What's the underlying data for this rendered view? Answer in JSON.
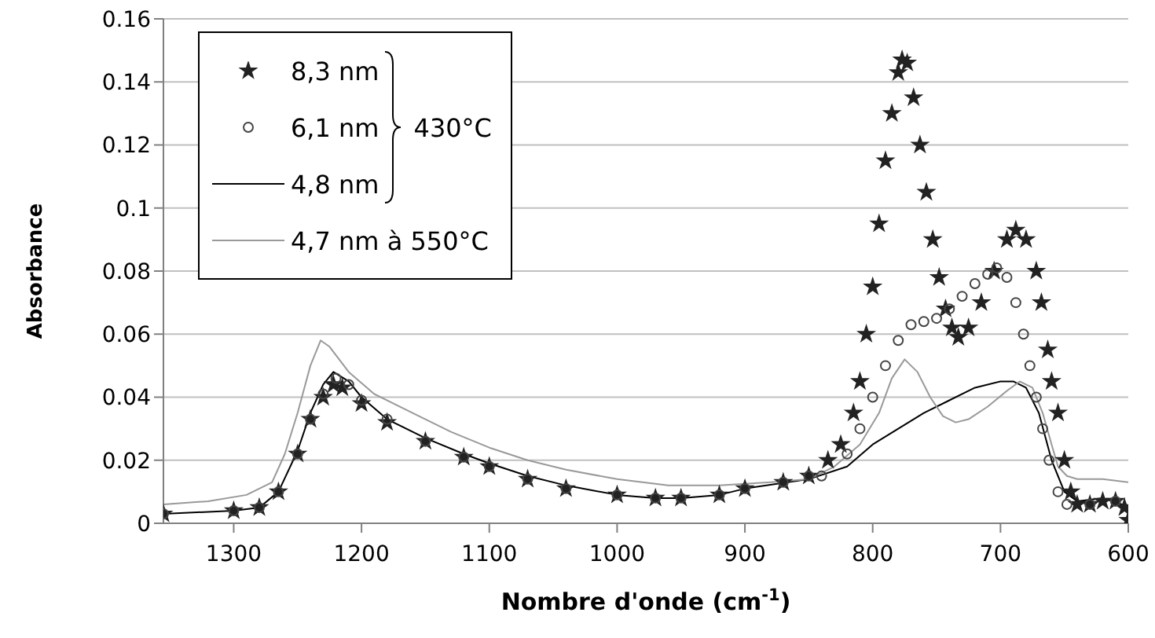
{
  "chart_data": {
    "type": "scatter",
    "xlabel": "Nombre d'onde (cm$^{-1}$)",
    "ylabel": "Absorbance",
    "xlim": [
      1355,
      600
    ],
    "xticks": [
      1300,
      1200,
      1100,
      1000,
      900,
      800,
      700,
      600
    ],
    "ylim": [
      0,
      0.16
    ],
    "yticks": [
      0,
      0.02,
      0.04,
      0.06,
      0.08,
      0.1,
      0.12,
      0.14,
      0.16
    ],
    "grid": "y",
    "legend": "top left",
    "annotations": [
      "430°C"
    ],
    "series": [
      {
        "name": "8,3 nm",
        "marker": "star",
        "color": "#222222",
        "x": [
          1355,
          1300,
          1280,
          1265,
          1250,
          1240,
          1230,
          1222,
          1215,
          1200,
          1180,
          1150,
          1120,
          1100,
          1070,
          1040,
          1000,
          970,
          950,
          920,
          900,
          870,
          850,
          835,
          825,
          815,
          810,
          805,
          800,
          795,
          790,
          785,
          780,
          777,
          773,
          768,
          763,
          758,
          753,
          748,
          743,
          738,
          733,
          725,
          715,
          705,
          695,
          688,
          680,
          672,
          668,
          663,
          660,
          655,
          650,
          645,
          640,
          630,
          620,
          610,
          603,
          600
        ],
        "values": [
          0.003,
          0.004,
          0.005,
          0.01,
          0.022,
          0.033,
          0.04,
          0.044,
          0.043,
          0.038,
          0.032,
          0.026,
          0.021,
          0.018,
          0.014,
          0.011,
          0.009,
          0.008,
          0.008,
          0.009,
          0.011,
          0.013,
          0.015,
          0.02,
          0.025,
          0.035,
          0.045,
          0.06,
          0.075,
          0.095,
          0.115,
          0.13,
          0.143,
          0.147,
          0.146,
          0.135,
          0.12,
          0.105,
          0.09,
          0.078,
          0.068,
          0.062,
          0.059,
          0.062,
          0.07,
          0.08,
          0.09,
          0.093,
          0.09,
          0.08,
          0.07,
          0.055,
          0.045,
          0.035,
          0.02,
          0.01,
          0.006,
          0.006,
          0.007,
          0.007,
          0.005,
          0.001
        ]
      },
      {
        "name": "6,1 nm",
        "marker": "circle",
        "color": "#444444",
        "x": [
          1355,
          1300,
          1280,
          1265,
          1250,
          1240,
          1230,
          1220,
          1210,
          1200,
          1180,
          1150,
          1120,
          1100,
          1070,
          1040,
          1000,
          970,
          950,
          920,
          900,
          870,
          850,
          840,
          820,
          810,
          800,
          790,
          780,
          770,
          760,
          750,
          740,
          730,
          720,
          710,
          703,
          695,
          688,
          682,
          677,
          672,
          667,
          662,
          655,
          648,
          630,
          610
        ],
        "values": [
          0.003,
          0.004,
          0.005,
          0.01,
          0.022,
          0.033,
          0.041,
          0.046,
          0.044,
          0.039,
          0.033,
          0.026,
          0.021,
          0.018,
          0.014,
          0.011,
          0.009,
          0.008,
          0.008,
          0.009,
          0.011,
          0.013,
          0.015,
          0.015,
          0.022,
          0.03,
          0.04,
          0.05,
          0.058,
          0.063,
          0.064,
          0.065,
          0.068,
          0.072,
          0.076,
          0.079,
          0.081,
          0.078,
          0.07,
          0.06,
          0.05,
          0.04,
          0.03,
          0.02,
          0.01,
          0.006,
          0.006,
          0.007
        ]
      },
      {
        "name": "4,8 nm",
        "type": "line",
        "color": "#000000",
        "x": [
          1355,
          1300,
          1280,
          1265,
          1250,
          1240,
          1230,
          1222,
          1210,
          1200,
          1180,
          1150,
          1120,
          1100,
          1070,
          1040,
          1000,
          970,
          950,
          920,
          900,
          850,
          820,
          800,
          780,
          760,
          740,
          720,
          700,
          690,
          680,
          670,
          660,
          650,
          640,
          620,
          605,
          600
        ],
        "values": [
          0.003,
          0.004,
          0.005,
          0.01,
          0.023,
          0.035,
          0.044,
          0.048,
          0.045,
          0.04,
          0.033,
          0.027,
          0.022,
          0.019,
          0.015,
          0.012,
          0.009,
          0.008,
          0.008,
          0.009,
          0.011,
          0.014,
          0.018,
          0.025,
          0.03,
          0.035,
          0.039,
          0.043,
          0.045,
          0.045,
          0.043,
          0.035,
          0.02,
          0.01,
          0.007,
          0.008,
          0.006,
          0.003
        ]
      },
      {
        "name": "4,7 nm à 550°C",
        "type": "line",
        "color": "#999999",
        "x": [
          1355,
          1320,
          1290,
          1270,
          1260,
          1250,
          1240,
          1232,
          1225,
          1210,
          1190,
          1160,
          1130,
          1100,
          1070,
          1040,
          1000,
          960,
          920,
          880,
          850,
          830,
          810,
          795,
          785,
          775,
          765,
          755,
          745,
          735,
          725,
          710,
          695,
          685,
          675,
          667,
          660,
          655,
          648,
          640,
          620,
          600
        ],
        "values": [
          0.006,
          0.007,
          0.009,
          0.013,
          0.022,
          0.035,
          0.05,
          0.058,
          0.056,
          0.048,
          0.041,
          0.035,
          0.029,
          0.024,
          0.02,
          0.017,
          0.014,
          0.012,
          0.012,
          0.013,
          0.014,
          0.018,
          0.025,
          0.035,
          0.046,
          0.052,
          0.048,
          0.04,
          0.034,
          0.032,
          0.033,
          0.037,
          0.042,
          0.045,
          0.043,
          0.035,
          0.025,
          0.018,
          0.015,
          0.014,
          0.014,
          0.013
        ]
      }
    ]
  }
}
